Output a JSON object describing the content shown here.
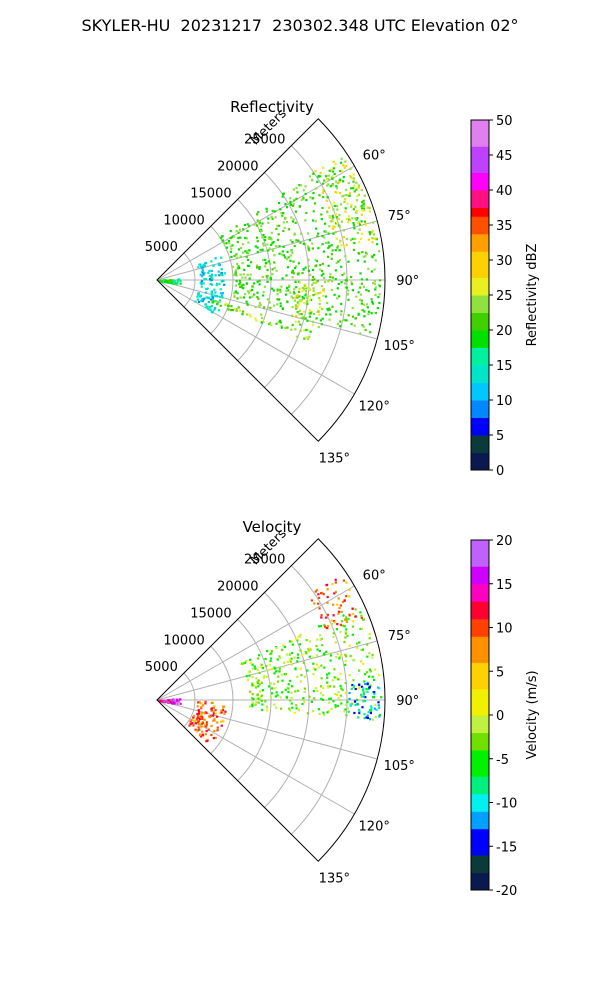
{
  "figure_title": "SKYLER-HU  20231217  230302.348 UTC Elevation 02°",
  "chart_data": [
    {
      "type": "heatmap",
      "title": "Reflectivity",
      "projection": "polar-sector",
      "radial_label": "Meters",
      "radial_ticks": [
        5000,
        10000,
        15000,
        20000,
        25000
      ],
      "radial_range": [
        0,
        30000
      ],
      "azimuth_ticks": [
        "60°",
        "75°",
        "90°",
        "105°",
        "120°",
        "135°"
      ],
      "azimuth_range_deg": [
        45,
        135
      ],
      "grid": true,
      "colorbar": {
        "label": "Reflectivity dBZ",
        "range": [
          0,
          50
        ],
        "ticks": [
          0,
          5,
          10,
          15,
          20,
          25,
          30,
          35,
          40,
          45,
          50
        ]
      },
      "features": [
        {
          "name": "near-range clutter",
          "azimuth_range": [
            84,
            100
          ],
          "range_m": [
            0,
            3000
          ],
          "value": 18
        },
        {
          "name": "blue arc",
          "azimuth_range": [
            68,
            120
          ],
          "range_m": [
            5500,
            9000
          ],
          "value": 13
        },
        {
          "name": "main echo",
          "azimuth_range": [
            55,
            105
          ],
          "range_m": [
            10000,
            29500
          ],
          "value": 21
        },
        {
          "name": "strong core",
          "azimuth_range": [
            55,
            80
          ],
          "range_m": [
            24000,
            29500
          ],
          "value": 27
        },
        {
          "name": "linear feature 1",
          "azimuth_range": [
            108,
            112
          ],
          "range_m": [
            7000,
            22000
          ],
          "value": 23
        },
        {
          "name": "linear feature 2",
          "azimuth_range": [
            90,
            108
          ],
          "range_m": [
            18000,
            22000
          ],
          "value": 25
        }
      ]
    },
    {
      "type": "heatmap",
      "title": "Velocity",
      "projection": "polar-sector",
      "radial_label": "Meters",
      "radial_ticks": [
        5000,
        10000,
        15000,
        20000,
        25000
      ],
      "radial_range": [
        0,
        30000
      ],
      "azimuth_ticks": [
        "60°",
        "75°",
        "90°",
        "105°",
        "120°",
        "135°"
      ],
      "azimuth_range_deg": [
        45,
        135
      ],
      "grid": true,
      "colorbar": {
        "label": "Velocity (m/s)",
        "range": [
          -20,
          20
        ],
        "ticks": [
          -20,
          -15,
          -10,
          -5,
          0,
          5,
          10,
          15,
          20
        ]
      },
      "features": [
        {
          "name": "near-range outbound",
          "azimuth_range": [
            84,
            100
          ],
          "range_m": [
            0,
            3000
          ],
          "value": 15
        },
        {
          "name": "arc",
          "azimuth_range": [
            90,
            130
          ],
          "range_m": [
            5000,
            9000
          ],
          "value": 9
        },
        {
          "name": "main echo",
          "azimuth_range": [
            65,
            95
          ],
          "range_m": [
            12000,
            29500
          ],
          "value": -3
        },
        {
          "name": "far range receding",
          "azimuth_range": [
            55,
            68
          ],
          "range_m": [
            24000,
            29500
          ],
          "value": 9
        },
        {
          "name": "far range approaching",
          "azimuth_range": [
            85,
            95
          ],
          "range_m": [
            25000,
            29500
          ],
          "value": -11
        }
      ]
    }
  ]
}
